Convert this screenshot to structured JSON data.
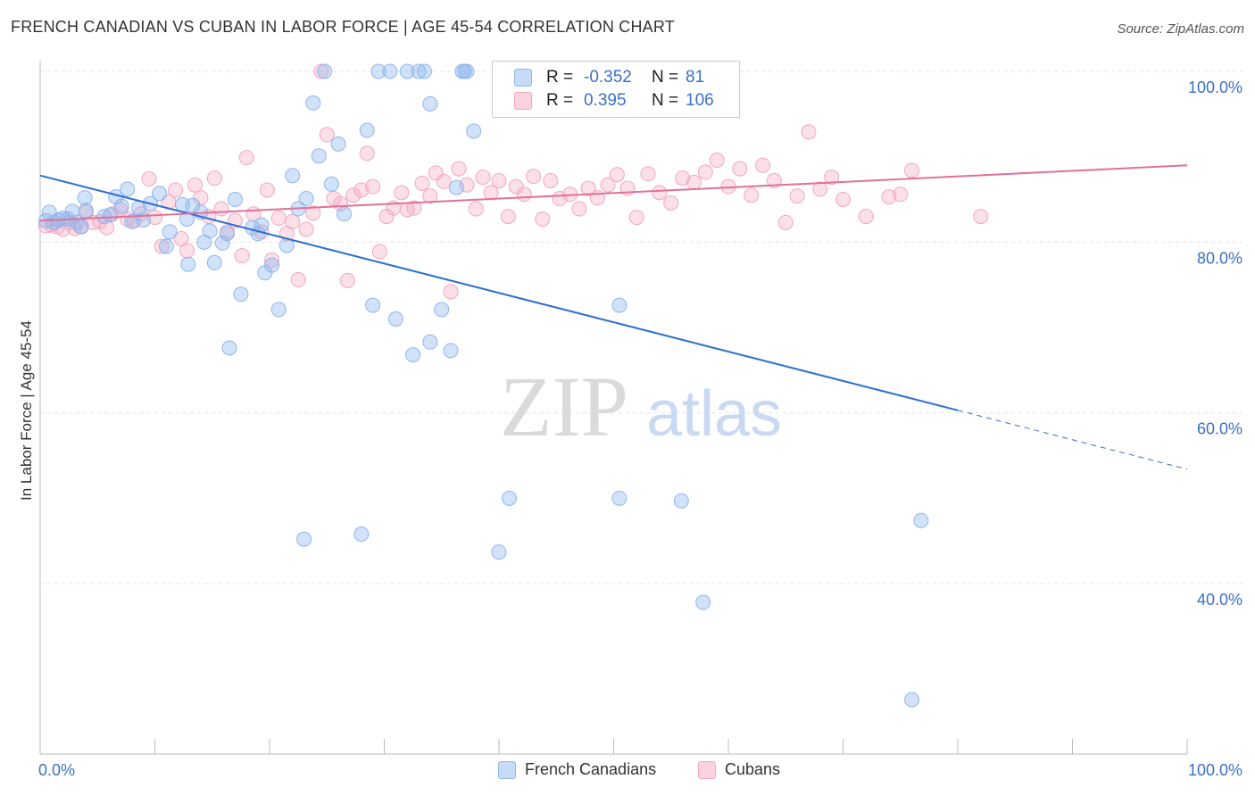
{
  "header": {
    "title": "FRENCH CANADIAN VS CUBAN IN LABOR FORCE | AGE 45-54 CORRELATION CHART",
    "source": "Source: ZipAtlas.com"
  },
  "watermark": {
    "zip": "ZIP",
    "atlas": "atlas"
  },
  "legend": {
    "rows": [
      {
        "r_label": "R =",
        "r_value": "-0.352",
        "n_label": "N =",
        "n_value": "81",
        "color": "#8fb6ee"
      },
      {
        "r_label": "R =",
        "r_value": "0.395",
        "n_label": "N =",
        "n_value": "106",
        "color": "#f3a6bf"
      }
    ]
  },
  "bottom_legend": {
    "items": [
      {
        "label": "French Canadians",
        "color": "#8fb6ee"
      },
      {
        "label": "Cubans",
        "color": "#f3a6bf"
      }
    ]
  },
  "chart_data": {
    "type": "scatter",
    "title": "FRENCH CANADIAN VS CUBAN IN LABOR FORCE | AGE 45-54 CORRELATION CHART",
    "ylabel": "In Labor Force | Age 45-54",
    "xlabel": "",
    "xlim": [
      0,
      100
    ],
    "ylim": [
      20,
      100
    ],
    "x_tick_labels": [
      "0.0%",
      "100.0%"
    ],
    "y_tick_labels": [
      "100.0%",
      "80.0%",
      "60.0%",
      "40.0%"
    ],
    "y_tick_values": [
      100,
      80,
      60,
      40
    ],
    "grid": true,
    "legend_position": "top-center",
    "colors": {
      "blue": "#8fb6ee",
      "blue_line": "#2f6fd0",
      "pink": "#f3a6bf",
      "pink_line": "#e0709a",
      "tick_text": "#3b6fc9"
    },
    "series": [
      {
        "name": "French Canadians",
        "R": -0.352,
        "N": 81,
        "trend": {
          "x0": 0,
          "y0": 87.8,
          "x1": 80,
          "y1": 60.3,
          "dash_to_x": 100,
          "dash_to_y": 53.4
        },
        "points": [
          [
            0.5,
            82.5
          ],
          [
            0.8,
            83.5
          ],
          [
            1.2,
            82.3
          ],
          [
            1.6,
            82.6
          ],
          [
            2.0,
            82.8
          ],
          [
            2.4,
            82.7
          ],
          [
            2.8,
            83.6
          ],
          [
            3.2,
            82.3
          ],
          [
            3.6,
            81.8
          ],
          [
            4.0,
            83.7
          ],
          [
            3.9,
            85.2
          ],
          [
            5.6,
            83.0
          ],
          [
            6.1,
            83.2
          ],
          [
            6.6,
            85.3
          ],
          [
            7.1,
            84.2
          ],
          [
            7.6,
            86.2
          ],
          [
            8.0,
            82.4
          ],
          [
            8.6,
            84.0
          ],
          [
            9.0,
            82.6
          ],
          [
            9.6,
            84.5
          ],
          [
            10.4,
            85.7
          ],
          [
            11.0,
            79.5
          ],
          [
            11.3,
            81.2
          ],
          [
            12.4,
            84.4
          ],
          [
            12.8,
            82.7
          ],
          [
            12.9,
            77.4
          ],
          [
            13.3,
            84.3
          ],
          [
            14.0,
            83.5
          ],
          [
            14.3,
            80.0
          ],
          [
            14.8,
            81.3
          ],
          [
            15.2,
            77.6
          ],
          [
            15.9,
            79.9
          ],
          [
            16.3,
            81.0
          ],
          [
            17.0,
            85.0
          ],
          [
            17.5,
            73.9
          ],
          [
            16.5,
            67.6
          ],
          [
            18.5,
            81.7
          ],
          [
            19.0,
            81.0
          ],
          [
            19.3,
            82.0
          ],
          [
            19.6,
            76.4
          ],
          [
            20.2,
            77.3
          ],
          [
            20.8,
            72.1
          ],
          [
            21.5,
            79.6
          ],
          [
            22.0,
            87.8
          ],
          [
            22.5,
            83.9
          ],
          [
            23.2,
            85.1
          ],
          [
            23.8,
            96.3
          ],
          [
            24.3,
            90.1
          ],
          [
            24.8,
            100
          ],
          [
            25.4,
            86.8
          ],
          [
            26.0,
            91.5
          ],
          [
            26.5,
            83.3
          ],
          [
            28.5,
            93.1
          ],
          [
            29.0,
            72.6
          ],
          [
            29.5,
            100
          ],
          [
            30.5,
            100
          ],
          [
            31.0,
            71.0
          ],
          [
            32.0,
            100
          ],
          [
            32.5,
            66.8
          ],
          [
            33.0,
            100
          ],
          [
            33.5,
            100
          ],
          [
            34.0,
            68.3
          ],
          [
            35.0,
            72.1
          ],
          [
            35.8,
            67.3
          ],
          [
            36.3,
            86.4
          ],
          [
            36.8,
            100
          ],
          [
            37.2,
            100
          ],
          [
            37.8,
            93.0
          ],
          [
            34.0,
            96.2
          ],
          [
            37.0,
            100
          ],
          [
            23.0,
            45.2
          ],
          [
            28.0,
            45.8
          ],
          [
            40.0,
            43.7
          ],
          [
            40.9,
            50.0
          ],
          [
            50.5,
            72.6
          ],
          [
            50.5,
            50.0
          ],
          [
            55.9,
            49.7
          ],
          [
            57.0,
            100
          ],
          [
            57.8,
            37.8
          ],
          [
            76.0,
            26.4
          ],
          [
            76.8,
            47.4
          ]
        ]
      },
      {
        "name": "Cubans",
        "R": 0.395,
        "N": 106,
        "trend": {
          "x0": 0,
          "y0": 82.5,
          "x1": 100,
          "y1": 89.0
        },
        "points": [
          [
            0.5,
            81.9
          ],
          [
            1.0,
            82.0
          ],
          [
            1.5,
            81.8
          ],
          [
            2.0,
            81.5
          ],
          [
            2.5,
            82.3
          ],
          [
            3.0,
            81.6
          ],
          [
            3.5,
            81.8
          ],
          [
            4.0,
            83.5
          ],
          [
            4.6,
            82.3
          ],
          [
            5.2,
            82.4
          ],
          [
            5.8,
            81.7
          ],
          [
            6.3,
            83.3
          ],
          [
            7.0,
            83.8
          ],
          [
            7.6,
            82.7
          ],
          [
            8.2,
            82.5
          ],
          [
            8.8,
            83.3
          ],
          [
            9.5,
            87.4
          ],
          [
            10.0,
            82.9
          ],
          [
            10.6,
            79.5
          ],
          [
            11.2,
            84.7
          ],
          [
            11.8,
            86.1
          ],
          [
            12.3,
            80.4
          ],
          [
            12.8,
            79.0
          ],
          [
            13.5,
            86.7
          ],
          [
            14.0,
            85.2
          ],
          [
            14.7,
            83.0
          ],
          [
            15.2,
            87.5
          ],
          [
            15.8,
            83.9
          ],
          [
            16.3,
            81.2
          ],
          [
            17.0,
            82.5
          ],
          [
            17.6,
            78.4
          ],
          [
            18.0,
            89.9
          ],
          [
            18.6,
            83.3
          ],
          [
            19.3,
            81.2
          ],
          [
            19.8,
            86.1
          ],
          [
            20.2,
            77.9
          ],
          [
            20.8,
            82.8
          ],
          [
            21.5,
            81.0
          ],
          [
            22.0,
            82.4
          ],
          [
            22.5,
            75.6
          ],
          [
            23.2,
            81.5
          ],
          [
            23.8,
            83.4
          ],
          [
            24.5,
            100
          ],
          [
            25.0,
            92.6
          ],
          [
            25.6,
            85.1
          ],
          [
            26.2,
            84.5
          ],
          [
            26.8,
            75.5
          ],
          [
            27.3,
            85.5
          ],
          [
            28.0,
            86.1
          ],
          [
            28.5,
            90.4
          ],
          [
            29.0,
            86.5
          ],
          [
            29.6,
            78.9
          ],
          [
            30.2,
            83.0
          ],
          [
            30.8,
            84.0
          ],
          [
            31.5,
            85.8
          ],
          [
            32.0,
            83.8
          ],
          [
            32.6,
            84.0
          ],
          [
            33.3,
            86.9
          ],
          [
            34.0,
            85.4
          ],
          [
            34.5,
            88.1
          ],
          [
            35.2,
            87.1
          ],
          [
            35.8,
            74.2
          ],
          [
            36.5,
            88.6
          ],
          [
            37.2,
            86.7
          ],
          [
            38.0,
            83.9
          ],
          [
            38.6,
            87.6
          ],
          [
            39.3,
            85.8
          ],
          [
            40.0,
            87.2
          ],
          [
            40.8,
            83.0
          ],
          [
            41.5,
            86.5
          ],
          [
            42.2,
            85.6
          ],
          [
            43.0,
            87.7
          ],
          [
            43.8,
            82.7
          ],
          [
            44.5,
            87.2
          ],
          [
            45.3,
            85.1
          ],
          [
            46.2,
            85.6
          ],
          [
            47.0,
            83.9
          ],
          [
            47.8,
            86.3
          ],
          [
            48.6,
            85.2
          ],
          [
            49.5,
            86.7
          ],
          [
            50.3,
            87.9
          ],
          [
            51.2,
            86.3
          ],
          [
            52.0,
            82.9
          ],
          [
            53.0,
            88.0
          ],
          [
            54.0,
            85.8
          ],
          [
            55.0,
            84.6
          ],
          [
            56.0,
            87.5
          ],
          [
            57.0,
            87.0
          ],
          [
            58.0,
            88.2
          ],
          [
            59.0,
            89.6
          ],
          [
            60.0,
            86.5
          ],
          [
            61.0,
            88.6
          ],
          [
            62.0,
            85.5
          ],
          [
            63.0,
            89.0
          ],
          [
            64.0,
            87.2
          ],
          [
            65.0,
            82.3
          ],
          [
            66.0,
            85.4
          ],
          [
            67.0,
            92.9
          ],
          [
            68.0,
            86.2
          ],
          [
            69.0,
            87.6
          ],
          [
            70.0,
            85.0
          ],
          [
            72.0,
            83.0
          ],
          [
            74.0,
            85.3
          ],
          [
            75.0,
            85.6
          ],
          [
            76.0,
            88.4
          ],
          [
            82.0,
            83.0
          ]
        ]
      }
    ]
  }
}
